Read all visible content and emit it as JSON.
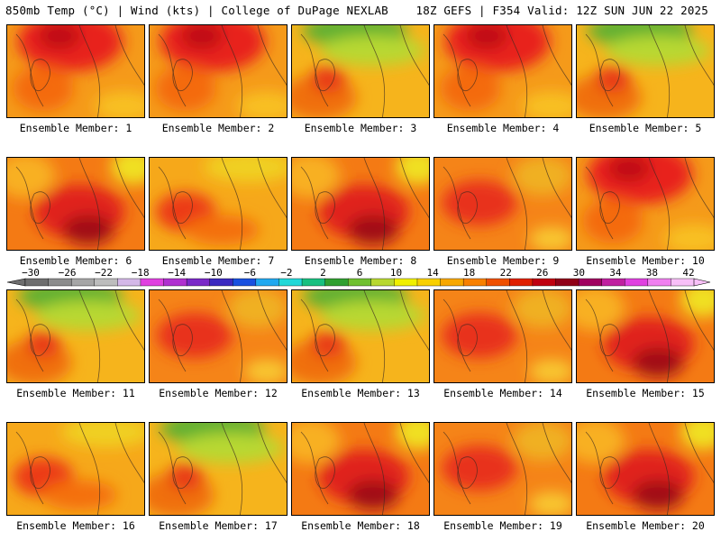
{
  "header": {
    "left": "850mb Temp (°C) | Wind (kts) | College of DuPage NEXLAB",
    "right": "18Z GEFS | F354 Valid: 12Z SUN JUN 22 2025"
  },
  "colorbar": {
    "ticks": [
      "−30",
      "−26",
      "−22",
      "−18",
      "−14",
      "−10",
      "−6",
      "−2",
      "2",
      "6",
      "10",
      "14",
      "18",
      "22",
      "26",
      "30",
      "34",
      "38",
      "42"
    ],
    "colors": [
      "#6e6e6e",
      "#8c8c8c",
      "#a6a6a6",
      "#bdbdbd",
      "#d4b8e8",
      "#e040e0",
      "#b030d0",
      "#7a28c8",
      "#3a28c0",
      "#1850e0",
      "#20a8f0",
      "#20d8d8",
      "#18c080",
      "#30a030",
      "#70c030",
      "#b8d830",
      "#f0f000",
      "#f8d000",
      "#f8a800",
      "#f88000",
      "#f05000",
      "#e02000",
      "#c00010",
      "#900018",
      "#a00060",
      "#c020a0",
      "#e040e0",
      "#f080f0",
      "#f8c0f8"
    ],
    "min": -32,
    "max": 44
  },
  "panels": [
    {
      "label": "Ensemble Member: 1",
      "theme": "hot-north"
    },
    {
      "label": "Ensemble Member: 2",
      "theme": "hot-north"
    },
    {
      "label": "Ensemble Member: 3",
      "theme": "cool-north"
    },
    {
      "label": "Ensemble Member: 4",
      "theme": "hot-north"
    },
    {
      "label": "Ensemble Member: 5",
      "theme": "cool-north"
    },
    {
      "label": "Ensemble Member: 6",
      "theme": "hot-core"
    },
    {
      "label": "Ensemble Member: 7",
      "theme": "mild"
    },
    {
      "label": "Ensemble Member: 8",
      "theme": "hot-core"
    },
    {
      "label": "Ensemble Member: 9",
      "theme": "warm"
    },
    {
      "label": "Ensemble Member: 10",
      "theme": "hot-north"
    },
    {
      "label": "Ensemble Member: 11",
      "theme": "cool-north"
    },
    {
      "label": "Ensemble Member: 12",
      "theme": "warm"
    },
    {
      "label": "Ensemble Member: 13",
      "theme": "cool-north"
    },
    {
      "label": "Ensemble Member: 14",
      "theme": "warm"
    },
    {
      "label": "Ensemble Member: 15",
      "theme": "hot-core"
    },
    {
      "label": "Ensemble Member: 16",
      "theme": "mild"
    },
    {
      "label": "Ensemble Member: 17",
      "theme": "cool-north"
    },
    {
      "label": "Ensemble Member: 18",
      "theme": "hot-core"
    },
    {
      "label": "Ensemble Member: 19",
      "theme": "warm"
    },
    {
      "label": "Ensemble Member: 20",
      "theme": "hot-core"
    }
  ]
}
